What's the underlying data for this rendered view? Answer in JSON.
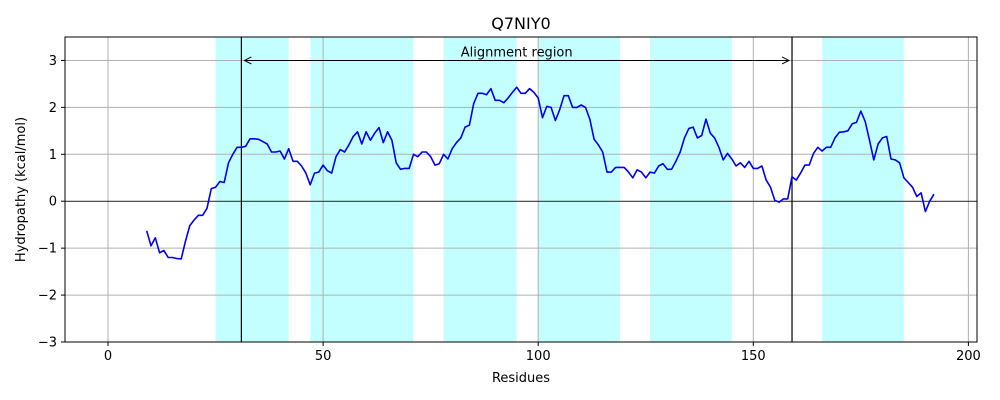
{
  "chart_data": {
    "type": "line",
    "title": "Q7NIY0",
    "xlabel": "Residues",
    "ylabel": "Hydropathy (kcal/mol)",
    "xlim": [
      -10,
      202
    ],
    "ylim": [
      -3,
      3.5
    ],
    "xticks": [
      0,
      50,
      100,
      150,
      200
    ],
    "yticks": [
      -3,
      -2,
      -1,
      0,
      1,
      2,
      3
    ],
    "xtick_labels": [
      "0",
      "50",
      "100",
      "150",
      "200"
    ],
    "ytick_labels": [
      "−3",
      "−2",
      "−1",
      "0",
      "1",
      "2",
      "3"
    ],
    "grid": true,
    "colors": {
      "line": "#0000ee",
      "band": "#c4ffff",
      "zero_line": "#000000",
      "vline": "#000000"
    },
    "highlight_regions": [
      [
        25,
        42
      ],
      [
        47,
        71
      ],
      [
        78,
        95
      ],
      [
        100,
        119
      ],
      [
        126,
        145
      ],
      [
        166,
        185
      ]
    ],
    "alignment_region": {
      "label": "Alignment region",
      "start": 31,
      "end": 159
    },
    "series": [
      {
        "x": [
          9,
          10,
          11,
          12,
          13,
          14,
          15,
          16,
          17,
          18,
          19,
          20,
          21,
          22,
          23,
          24,
          25,
          26,
          27,
          28,
          29,
          30,
          31,
          32,
          33,
          34,
          35,
          36,
          37,
          38,
          39,
          40,
          41,
          42,
          43,
          44,
          45,
          46,
          47,
          48,
          49,
          50,
          51,
          52,
          53,
          54,
          55,
          56,
          57,
          58,
          59,
          60,
          61,
          62,
          63,
          64,
          65,
          66,
          67,
          68,
          69,
          70,
          71,
          72,
          73,
          74,
          75,
          76,
          77,
          78,
          79,
          80,
          81,
          82,
          83,
          84,
          85,
          86,
          87,
          88,
          89,
          90,
          91,
          92,
          93,
          94,
          95,
          96,
          97,
          98,
          99,
          100,
          101,
          102,
          103,
          104,
          105,
          106,
          107,
          108,
          109,
          110,
          111,
          112,
          113,
          114,
          115,
          116,
          117,
          118,
          119,
          120,
          121,
          122,
          123,
          124,
          125,
          126,
          127,
          128,
          129,
          130,
          131,
          132,
          133,
          134,
          135,
          136,
          137,
          138,
          139,
          140,
          141,
          142,
          143,
          144,
          145,
          146,
          147,
          148,
          149,
          150,
          151,
          152,
          153,
          154,
          155,
          156,
          157,
          158,
          159,
          160,
          161,
          162,
          163,
          164,
          165,
          166,
          167,
          168,
          169,
          170,
          171,
          172,
          173,
          174,
          175,
          176,
          177,
          178,
          179,
          180,
          181,
          182,
          183,
          184,
          185,
          186,
          187,
          188,
          189,
          190,
          191,
          192
        ],
        "values": [
          -0.63,
          -0.95,
          -0.78,
          -1.1,
          -1.05,
          -1.2,
          -1.2,
          -1.22,
          -1.23,
          -0.85,
          -0.52,
          -0.4,
          -0.3,
          -0.3,
          -0.15,
          0.27,
          0.3,
          0.42,
          0.4,
          0.82,
          1.0,
          1.15,
          1.15,
          1.17,
          1.33,
          1.33,
          1.32,
          1.27,
          1.22,
          1.05,
          1.05,
          1.07,
          0.9,
          1.12,
          0.85,
          0.85,
          0.75,
          0.6,
          0.35,
          0.6,
          0.62,
          0.77,
          0.65,
          0.6,
          0.95,
          1.1,
          1.05,
          1.2,
          1.38,
          1.48,
          1.22,
          1.48,
          1.3,
          1.45,
          1.57,
          1.25,
          1.48,
          1.3,
          0.82,
          0.68,
          0.7,
          0.7,
          1.0,
          0.95,
          1.05,
          1.05,
          0.95,
          0.77,
          0.8,
          1.0,
          0.9,
          1.12,
          1.25,
          1.35,
          1.58,
          1.62,
          2.08,
          2.3,
          2.3,
          2.27,
          2.4,
          2.15,
          2.15,
          2.1,
          2.2,
          2.32,
          2.43,
          2.3,
          2.3,
          2.4,
          2.32,
          2.2,
          1.78,
          2.02,
          2.0,
          1.72,
          1.95,
          2.25,
          2.25,
          2.0,
          2.0,
          2.05,
          2.0,
          1.75,
          1.32,
          1.2,
          1.05,
          0.62,
          0.62,
          0.72,
          0.72,
          0.72,
          0.62,
          0.5,
          0.67,
          0.62,
          0.5,
          0.62,
          0.6,
          0.75,
          0.8,
          0.68,
          0.68,
          0.85,
          1.05,
          1.35,
          1.55,
          1.58,
          1.35,
          1.4,
          1.75,
          1.45,
          1.35,
          1.15,
          0.88,
          1.02,
          0.9,
          0.75,
          0.82,
          0.72,
          0.85,
          0.7,
          0.7,
          0.75,
          0.45,
          0.3,
          0.02,
          -0.02,
          0.05,
          0.05,
          0.52,
          0.45,
          0.6,
          0.77,
          0.77,
          1.02,
          1.15,
          1.07,
          1.15,
          1.15,
          1.35,
          1.47,
          1.48,
          1.5,
          1.65,
          1.68,
          1.92,
          1.7,
          1.3,
          0.88,
          1.22,
          1.35,
          1.38,
          0.9,
          0.88,
          0.82,
          0.5,
          0.4,
          0.3,
          0.1,
          0.18,
          -0.22,
          0.0,
          0.15
        ]
      }
    ]
  }
}
